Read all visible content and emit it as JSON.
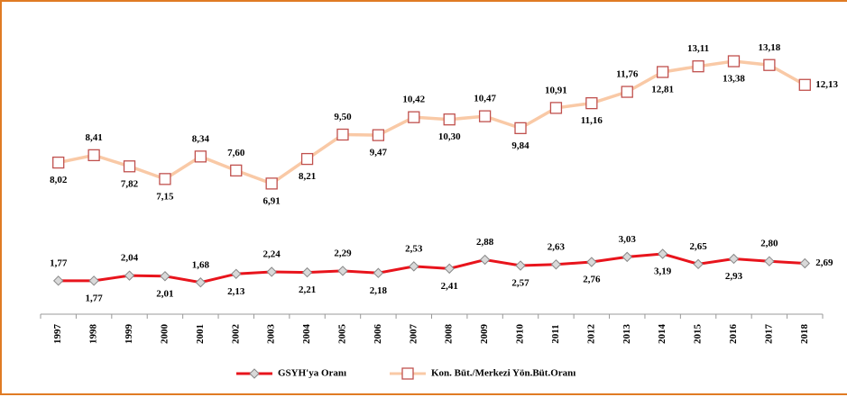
{
  "chart_data": {
    "type": "line",
    "categories": [
      "1997",
      "1998",
      "1999",
      "2000",
      "2001",
      "2002",
      "2003",
      "2004",
      "2005",
      "2006",
      "2007",
      "2008",
      "2009",
      "2010",
      "2011",
      "2012",
      "2013",
      "2014",
      "2015",
      "2016",
      "2017",
      "2018"
    ],
    "ylim": [
      0,
      14
    ],
    "legend": "bottom",
    "series": [
      {
        "name": "GSYH'ya Oranı",
        "color": "#e8141c",
        "marker": "diamond",
        "values": [
          1.77,
          1.77,
          2.04,
          2.01,
          1.68,
          2.13,
          2.24,
          2.21,
          2.29,
          2.18,
          2.53,
          2.41,
          2.88,
          2.57,
          2.63,
          2.76,
          3.03,
          3.19,
          2.65,
          2.93,
          2.8,
          2.69
        ],
        "value_labels": [
          "1,77",
          "1,77",
          "2,04",
          "2,01",
          "1,68",
          "2,13",
          "2,24",
          "2,21",
          "2,29",
          "2,18",
          "2,53",
          "2,41",
          "2,88",
          "2,57",
          "2,63",
          "2,76",
          "3,03",
          "3,19",
          "2,65",
          "2,93",
          "2,80",
          "2,69"
        ]
      },
      {
        "name": "Kon. Büt./Merkezi Yön.Büt.Oranı",
        "color": "#f9c9a6",
        "marker": "square",
        "values": [
          8.02,
          8.41,
          7.82,
          7.15,
          8.34,
          7.6,
          6.91,
          8.21,
          9.5,
          9.47,
          10.42,
          10.3,
          10.47,
          9.84,
          10.91,
          11.16,
          11.76,
          12.81,
          13.11,
          13.38,
          13.18,
          12.13
        ],
        "value_labels": [
          "8,02",
          "8,41",
          "7,82",
          "7,15",
          "8,34",
          "7,60",
          "6,91",
          "8,21",
          "9,50",
          "9,47",
          "10,42",
          "10,30",
          "10,47",
          "9,84",
          "10,91",
          "11,16",
          "11,76",
          "12,81",
          "13,11",
          "13,38",
          "13,18",
          "12,13"
        ]
      }
    ]
  }
}
